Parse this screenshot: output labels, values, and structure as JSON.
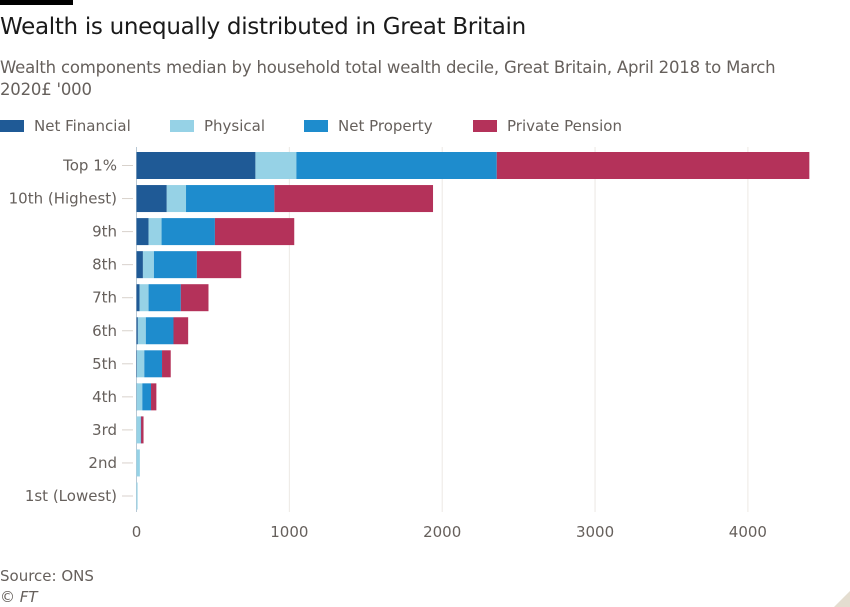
{
  "header": {
    "title": "Wealth is unequally distributed in Great Britain",
    "subtitle": "Wealth components median by household total wealth decile, Great Britain, April 2018 to March 2020£ '000"
  },
  "footer": {
    "source": "Source: ONS",
    "copyright": "© FT"
  },
  "colors": {
    "net_financial": "#1f5a96",
    "physical": "#96d2e6",
    "net_property": "#1e8ccd",
    "private_pension": "#b4325a",
    "gridline": "#ece8e4",
    "text": "#66605c"
  },
  "chart_data": {
    "type": "bar",
    "orientation": "horizontal",
    "stacked": true,
    "title": "Wealth is unequally distributed in Great Britain",
    "subtitle": "Wealth components median by household total wealth decile, Great Britain, April 2018 to March 2020£ '000",
    "xlabel": "",
    "ylabel": "",
    "xlim": [
      0,
      4400
    ],
    "xticks": [
      0,
      1000,
      2000,
      3000,
      4000
    ],
    "grid": true,
    "legend_position": "top-left",
    "categories": [
      "Top 1%",
      "10th (Highest)",
      "9th",
      "8th",
      "7th",
      "6th",
      "5th",
      "4th",
      "3rd",
      "2nd",
      "1st (Lowest)"
    ],
    "series": [
      {
        "name": "Net Financial",
        "color": "#1f5a96",
        "values": [
          778,
          198,
          79,
          42,
          20,
          9,
          3,
          1,
          0,
          0,
          0
        ]
      },
      {
        "name": "Physical",
        "color": "#96d2e6",
        "values": [
          268,
          126,
          85,
          72,
          59,
          52,
          48,
          37,
          28,
          22,
          7
        ]
      },
      {
        "name": "Net Property",
        "color": "#1e8ccd",
        "values": [
          1311,
          578,
          349,
          281,
          211,
          181,
          116,
          57,
          2,
          0,
          0
        ]
      },
      {
        "name": "Private Pension",
        "color": "#b4325a",
        "values": [
          2045,
          1038,
          519,
          290,
          181,
          96,
          57,
          35,
          16,
          0,
          0
        ]
      }
    ]
  }
}
